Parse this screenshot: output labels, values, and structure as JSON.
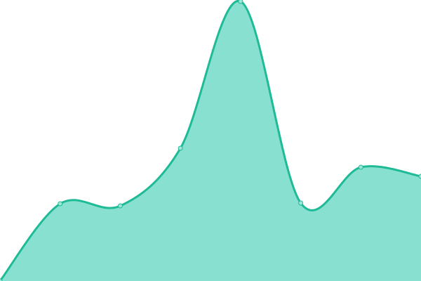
{
  "chart_data": {
    "type": "area",
    "x": [
      0,
      1,
      2,
      3,
      4,
      5,
      6,
      7
    ],
    "values": [
      0,
      27.5,
      26.75,
      47.25,
      99.5,
      27.75,
      40.5,
      37.25
    ],
    "ylim": [
      0,
      100
    ],
    "xlim": [
      0,
      7
    ],
    "grid": false,
    "axes_visible": false,
    "legend": "none",
    "curve": "smooth",
    "colors": {
      "stroke": "#1fba96",
      "fill": "#88e0d0",
      "point_fill": "#9be6d6"
    }
  }
}
